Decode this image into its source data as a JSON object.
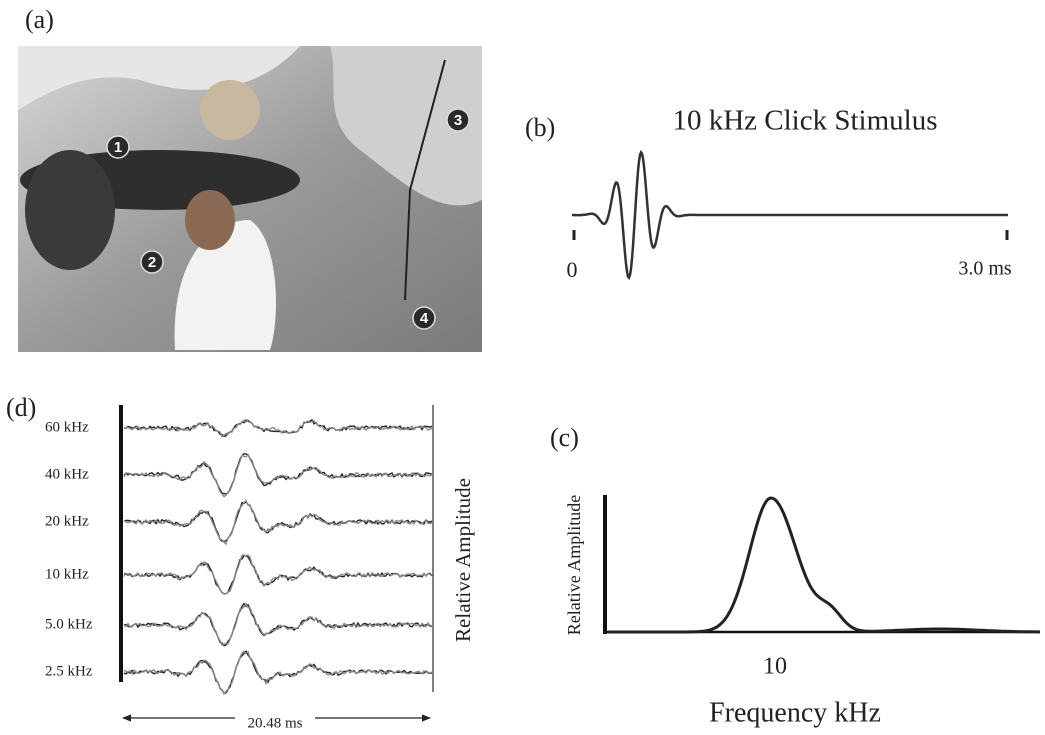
{
  "panel_a": {
    "label": "(a)",
    "markers": [
      "1",
      "2",
      "3",
      "4"
    ]
  },
  "panel_b": {
    "label": "(b)",
    "title": "10 kHz Click Stimulus",
    "start": "0",
    "end": "3.0 ms"
  },
  "panel_c": {
    "label": "(c)",
    "y_label": "Relative Amplitude",
    "x_tick": "10",
    "x_label": "Frequency kHz"
  },
  "panel_d": {
    "label": "(d)",
    "traces": [
      "60 kHz",
      "40 kHz",
      "20 kHz",
      "10 kHz",
      "5.0 kHz",
      "2.5 kHz"
    ],
    "y_label": "Relative Amplitude",
    "x_span": "20.48 ms"
  }
}
